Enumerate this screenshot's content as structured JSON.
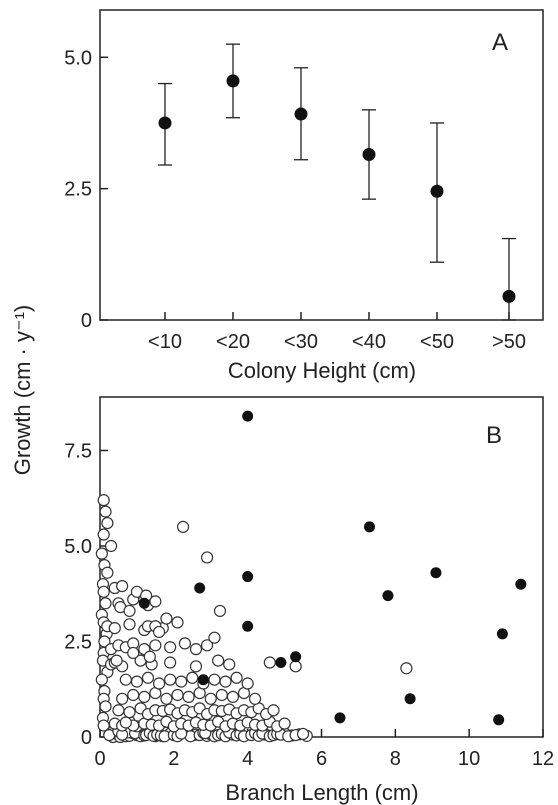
{
  "chart_data": [
    {
      "type": "scatter",
      "panel_label": "A",
      "categories": [
        "<10",
        "<20",
        "<30",
        "<40",
        "<50",
        ">50"
      ],
      "values": [
        3.75,
        4.55,
        3.92,
        3.15,
        2.45,
        0.45
      ],
      "error_low": [
        2.95,
        3.85,
        3.05,
        2.3,
        1.1,
        0.0
      ],
      "error_high": [
        4.5,
        5.25,
        4.8,
        4.0,
        3.75,
        1.55
      ],
      "xlabel": "Colony Height (cm)",
      "ylabel": "Growth (cm · y⁻¹)",
      "ylim": [
        0,
        5.9
      ],
      "yticks": [
        0,
        2.5,
        5.0
      ],
      "ytick_labels": [
        "0",
        "2.5",
        "5.0"
      ],
      "marker_color": "#111111"
    },
    {
      "type": "scatter",
      "panel_label": "B",
      "xlabel": "Branch Length (cm)",
      "ylabel": "Growth (cm · y⁻¹)",
      "xlim": [
        0,
        12
      ],
      "ylim": [
        0,
        8.9
      ],
      "xticks": [
        0,
        2,
        4,
        6,
        8,
        10,
        12
      ],
      "yticks": [
        0,
        2.5,
        5.0,
        7.5
      ],
      "ytick_labels": [
        "0",
        "2.5",
        "5.0",
        "7.5"
      ],
      "series": [
        {
          "marker": "open-circle",
          "color": "#333333",
          "x": [
            0.1,
            0.15,
            0.2,
            0.1,
            0.3,
            0.05,
            0.12,
            0.2,
            0.08,
            0.1,
            0.15,
            0.05,
            0.1,
            0.18,
            0.12,
            0.1,
            0.08,
            0.2,
            0.05,
            0.12,
            0.1,
            0.15,
            0.08,
            0.1,
            0.35,
            0.5,
            0.45,
            0.55,
            0.3,
            0.25,
            0.7,
            0.5,
            0.65,
            0.8,
            0.9,
            1.0,
            1.1,
            0.75,
            0.6,
            0.95,
            1.2,
            1.3,
            1.5,
            1.4,
            1.25,
            1.35,
            1.45,
            1.6,
            1.7,
            1.8,
            1.55,
            1.65,
            1.9,
            1.75,
            2.0,
            2.2,
            2.1,
            2.4,
            2.5,
            2.3,
            2.6,
            2.45,
            2.2,
            2.7,
            2.8,
            2.9,
            3.0,
            3.1,
            2.85,
            3.2,
            3.3,
            3.4,
            3.6,
            3.5,
            3.7,
            3.8,
            3.9,
            4.1,
            4.2,
            4.3,
            4.5,
            4.4,
            4.6,
            4.7,
            4.8,
            5.0,
            5.2,
            4.9,
            5.1,
            5.4,
            5.6,
            5.3,
            5.5,
            0.4,
            0.6,
            0.8,
            1.0,
            1.2,
            0.9,
            0.7,
            1.4,
            1.6,
            1.8,
            2.0,
            2.2,
            2.4,
            2.6,
            2.8,
            3.0,
            3.2,
            3.4,
            3.6,
            3.8,
            4.0,
            4.2,
            4.4,
            4.6,
            4.8,
            5.0,
            0.5,
            0.8,
            1.1,
            1.3,
            1.5,
            1.7,
            1.9,
            2.1,
            2.3,
            2.5,
            2.7,
            2.9,
            3.1,
            3.3,
            3.5,
            3.7,
            3.9,
            4.1,
            4.3,
            4.5,
            4.7,
            0.6,
            0.9,
            1.2,
            1.5,
            1.8,
            2.1,
            2.4,
            2.7,
            3.0,
            3.3,
            3.6,
            3.9,
            4.2,
            0.7,
            1.0,
            1.3,
            1.6,
            1.9,
            2.2,
            2.5,
            2.8,
            3.1,
            3.4,
            3.7,
            4.0,
            0.3,
            0.4,
            0.6,
            1.1,
            1.4,
            1.9,
            2.6,
            3.2,
            3.5,
            4.6,
            5.3,
            0.3,
            0.5,
            0.7,
            0.9,
            1.2,
            1.5,
            1.9,
            2.3,
            2.6,
            2.9,
            0.2,
            0.4,
            0.8,
            1.2,
            1.3,
            1.7,
            0.5,
            0.9,
            1.3,
            1.5,
            0.4,
            0.6,
            2.25,
            2.9,
            3.25,
            3.1,
            8.3,
            1.0,
            1.2,
            0.55,
            0.8,
            1.25,
            1.5,
            1.8,
            1.6,
            2.1,
            0.45,
            0.9,
            1.35
          ],
          "y": [
            6.2,
            5.9,
            5.6,
            5.3,
            5.0,
            4.8,
            4.5,
            4.3,
            4.0,
            3.8,
            3.5,
            3.2,
            3.0,
            2.7,
            2.5,
            2.2,
            2.0,
            1.7,
            1.5,
            1.2,
            1.0,
            0.8,
            0.5,
            0.3,
            0.0,
            0.05,
            0.1,
            0.0,
            0.1,
            0.05,
            0.02,
            0.15,
            0.08,
            0.03,
            0.1,
            0.05,
            0.02,
            0.12,
            0.06,
            0.1,
            0.04,
            0.08,
            0.02,
            0.12,
            0.05,
            0.1,
            0.03,
            0.07,
            0.02,
            0.11,
            0.06,
            0.04,
            0.09,
            0.02,
            0.05,
            0.1,
            0.02,
            0.08,
            0.04,
            0.12,
            0.06,
            0.02,
            0.09,
            0.05,
            0.11,
            0.03,
            0.07,
            0.02,
            0.1,
            0.05,
            0.08,
            0.02,
            0.06,
            0.12,
            0.04,
            0.08,
            0.02,
            0.05,
            0.1,
            0.03,
            0.06,
            0.09,
            0.02,
            0.05,
            0.08,
            0.1,
            0.04,
            0.06,
            0.02,
            0.07,
            0.03,
            0.05,
            0.08,
            0.35,
            0.3,
            0.4,
            0.28,
            0.35,
            0.3,
            0.38,
            0.32,
            0.3,
            0.4,
            0.28,
            0.35,
            0.3,
            0.38,
            0.32,
            0.3,
            0.4,
            0.28,
            0.35,
            0.3,
            0.38,
            0.32,
            0.3,
            0.4,
            0.28,
            0.35,
            0.7,
            0.65,
            0.75,
            0.6,
            0.7,
            0.68,
            0.72,
            0.62,
            0.7,
            0.65,
            0.75,
            0.6,
            0.7,
            0.68,
            0.72,
            0.62,
            0.7,
            0.65,
            0.75,
            0.6,
            0.7,
            1.0,
            1.1,
            1.05,
            1.15,
            1.0,
            1.1,
            1.05,
            1.15,
            1.0,
            1.1,
            1.05,
            1.15,
            1.0,
            1.5,
            1.45,
            1.55,
            1.4,
            1.5,
            1.45,
            1.55,
            1.4,
            1.5,
            1.45,
            1.55,
            1.4,
            1.9,
            1.95,
            1.85,
            2.0,
            1.9,
            1.95,
            1.85,
            2.0,
            1.9,
            1.95,
            1.85,
            2.3,
            2.4,
            2.35,
            2.45,
            2.3,
            2.4,
            2.35,
            2.45,
            2.3,
            2.4,
            2.9,
            2.85,
            2.95,
            2.8,
            2.9,
            2.85,
            3.5,
            3.6,
            3.45,
            3.55,
            3.9,
            3.95,
            5.5,
            4.7,
            3.3,
            2.6,
            1.8,
            3.8,
            3.6,
            3.4,
            3.3,
            3.7,
            2.9,
            3.1,
            2.75,
            3.0,
            2.0,
            2.2,
            2.1
          ]
        },
        {
          "marker": "filled-circle",
          "color": "#111111",
          "x": [
            4.0,
            7.3,
            2.7,
            4.0,
            1.2,
            4.0,
            9.1,
            7.8,
            11.4,
            10.9,
            5.3,
            4.9,
            2.8,
            8.4,
            6.5,
            10.8
          ],
          "y": [
            8.4,
            5.5,
            3.9,
            4.2,
            3.5,
            2.9,
            4.3,
            3.7,
            4.0,
            2.7,
            2.1,
            1.95,
            1.5,
            1.0,
            0.5,
            0.45
          ]
        }
      ]
    }
  ]
}
